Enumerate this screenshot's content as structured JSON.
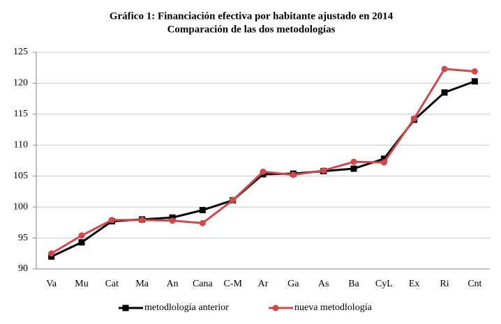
{
  "chart_data": {
    "type": "line",
    "title": "Gráfico 1: Financiación efectiva por habitante ajustado en 2014",
    "subtitle": "Comparación de las dos metodologías",
    "categories": [
      "Va",
      "Mu",
      "Cat",
      "Ma",
      "An",
      "Cana",
      "C-M",
      "Ar",
      "Ga",
      "As",
      "Ba",
      "CyL",
      "Ex",
      "Ri",
      "Cnt"
    ],
    "series": [
      {
        "name": "metodlología anterior",
        "color": "#000000",
        "marker": "square",
        "values": [
          92.0,
          94.3,
          97.7,
          98.0,
          98.3,
          99.5,
          101.1,
          105.3,
          105.4,
          105.8,
          106.2,
          107.8,
          114.1,
          118.5,
          120.3
        ]
      },
      {
        "name": "nueva metodlología",
        "color": "#d0484a",
        "marker": "circle",
        "values": [
          92.5,
          95.4,
          97.9,
          97.9,
          97.8,
          97.4,
          101.1,
          105.7,
          105.2,
          105.9,
          107.3,
          107.2,
          114.3,
          122.3,
          121.9
        ]
      }
    ],
    "ylim": [
      90,
      125
    ],
    "yticks": [
      90,
      95,
      100,
      105,
      110,
      115,
      120,
      125
    ],
    "grid": true,
    "legend": "bottom"
  }
}
